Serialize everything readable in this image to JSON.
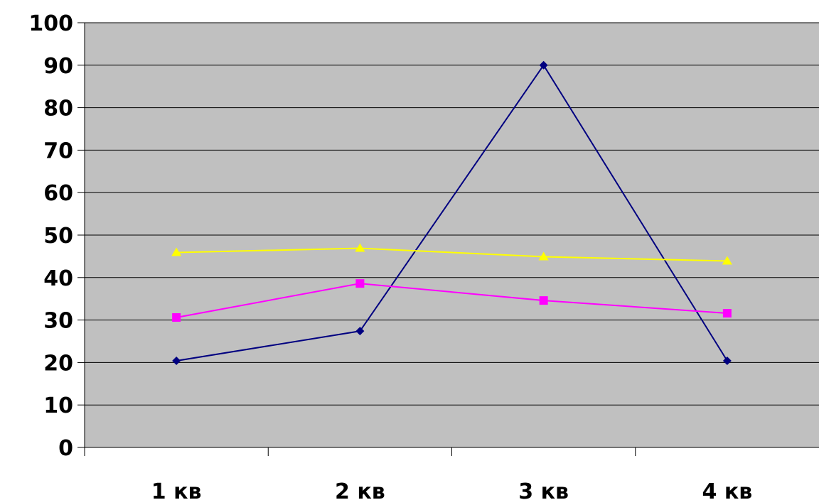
{
  "chart_data": {
    "type": "line",
    "categories": [
      "1 кв",
      "2 кв",
      "3 кв",
      "4 кв"
    ],
    "y_ticks": [
      "0",
      "10",
      "20",
      "30",
      "40",
      "50",
      "60",
      "70",
      "80",
      "90",
      "100"
    ],
    "ylim": [
      0,
      100
    ],
    "grid": true,
    "legend": "none",
    "plot_background": "#c0c0c0",
    "series": [
      {
        "color": "#000080",
        "marker": "diamond",
        "values": [
          20.4,
          27.4,
          90,
          20.4
        ]
      },
      {
        "color": "#ff00ff",
        "marker": "square",
        "values": [
          30.6,
          38.6,
          34.6,
          31.6
        ]
      },
      {
        "color": "#ffff00",
        "marker": "triangle",
        "values": [
          45.9,
          46.9,
          44.9,
          43.9
        ]
      }
    ]
  }
}
